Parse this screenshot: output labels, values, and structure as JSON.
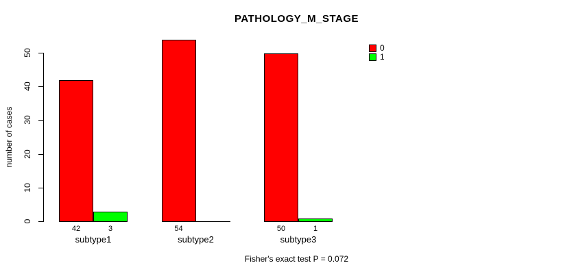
{
  "chart_data": {
    "type": "bar",
    "title": "PATHOLOGY_M_STAGE",
    "ylabel": "number of cases",
    "xlabel": "",
    "categories": [
      "subtype1",
      "subtype2",
      "subtype3"
    ],
    "series": [
      {
        "name": "0",
        "color": "#FF0000",
        "values": [
          42,
          54,
          50
        ]
      },
      {
        "name": "1",
        "color": "#00FF00",
        "values": [
          3,
          0,
          1
        ]
      }
    ],
    "bar_value_labels": [
      [
        "42",
        "3"
      ],
      [
        "54",
        ""
      ],
      [
        "50",
        "1"
      ]
    ],
    "yticks": [
      0,
      10,
      20,
      30,
      40,
      50
    ],
    "ylim": [
      0,
      50
    ],
    "grid": false,
    "legend": {
      "position": "top-right",
      "entries": [
        {
          "label": "0",
          "color": "#FF0000"
        },
        {
          "label": "1",
          "color": "#00FF00"
        }
      ]
    },
    "annotation": "Fisher's exact test P = 0.072"
  }
}
